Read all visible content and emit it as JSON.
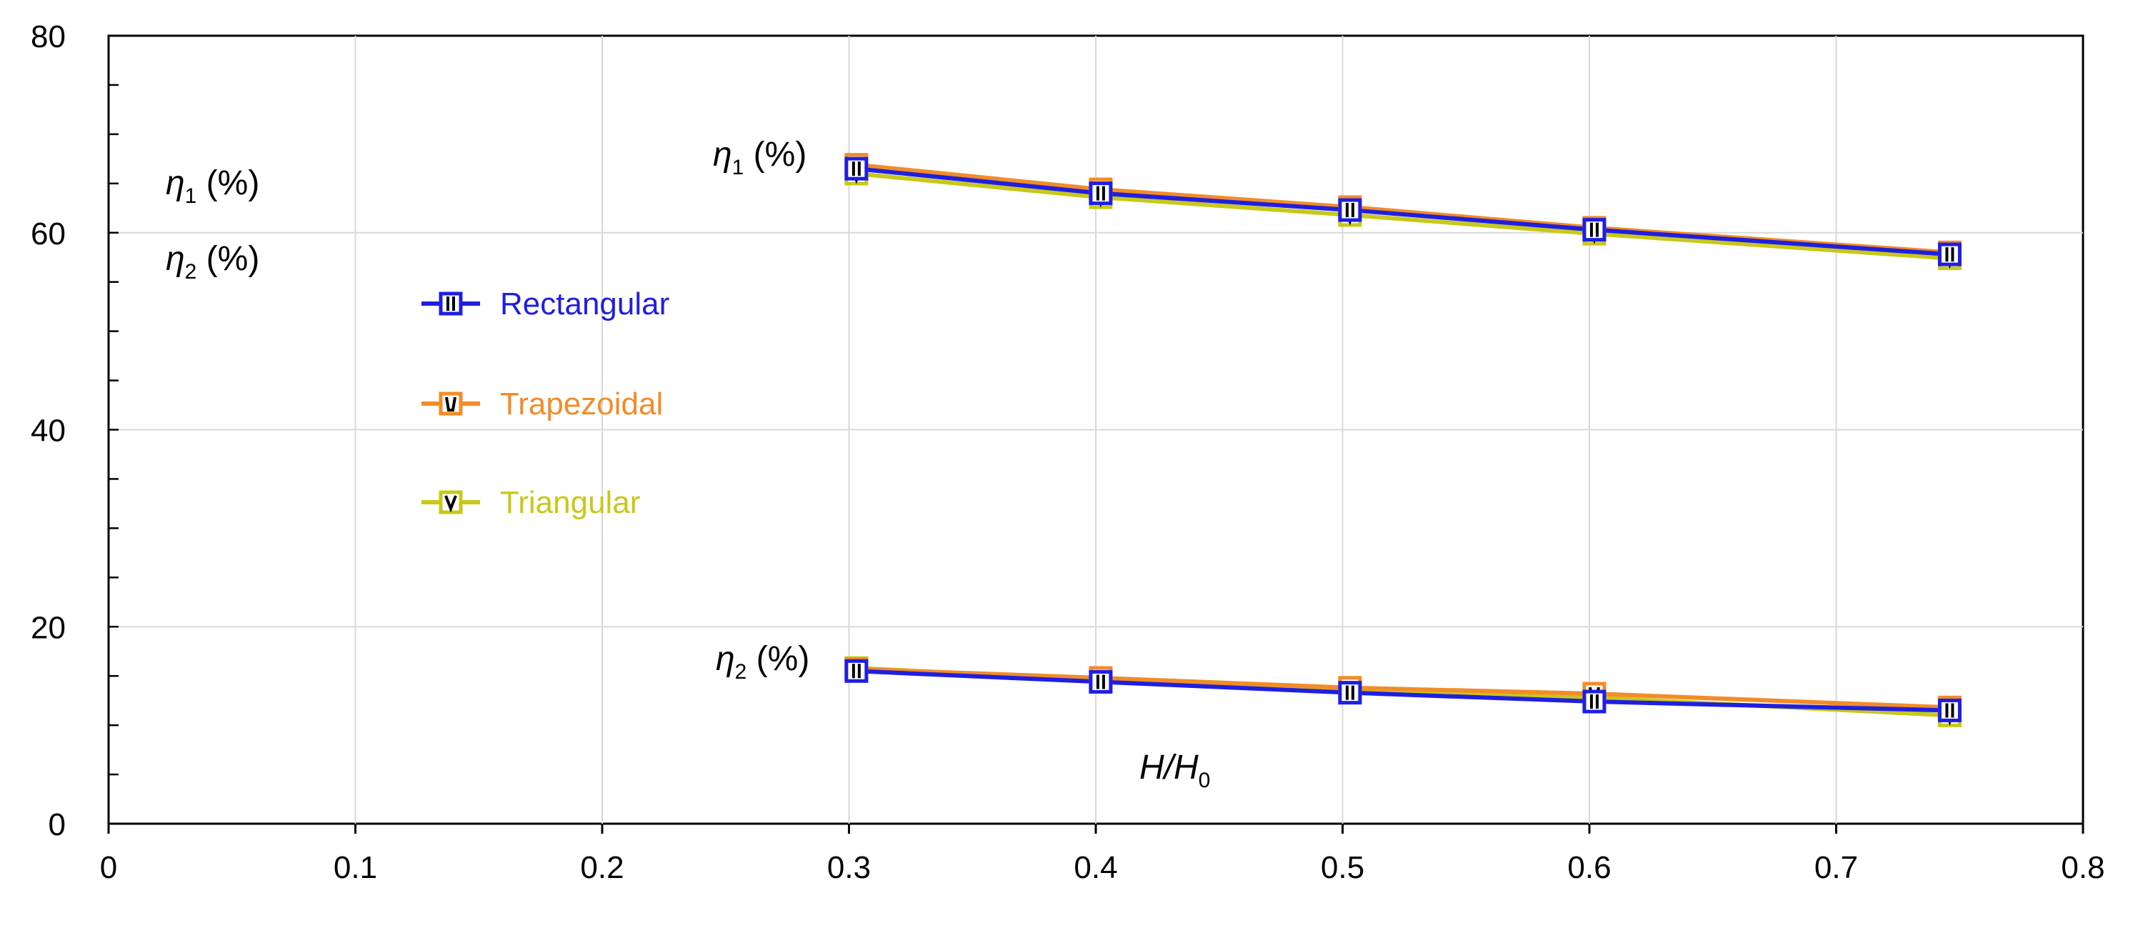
{
  "chart_data": {
    "type": "line",
    "xlabel": "H/H0",
    "xlim": [
      0,
      0.8
    ],
    "ylim": [
      0,
      80
    ],
    "x_ticks": [
      "0",
      "0.1",
      "0.2",
      "0.3",
      "0.4",
      "0.5",
      "0.6",
      "0.7",
      "0.8"
    ],
    "y_ticks": [
      "0",
      "20",
      "40",
      "60",
      "80"
    ],
    "grid": true,
    "legend_position": "left",
    "annotations": {
      "eta1_left": "η1 (%)",
      "eta2_left": "η2 (%)",
      "eta1_curve": "η1 (%)",
      "eta2_curve": "η2 (%)",
      "xlabel": "H/H0"
    },
    "series": [
      {
        "name": "Rectangular",
        "color": "#1f1fe0",
        "marker": "square-I",
        "x": [
          0.303,
          0.402,
          0.503,
          0.602,
          0.746
        ],
        "eta1": [
          66.5,
          64.0,
          62.3,
          60.3,
          57.8
        ],
        "eta2": [
          15.5,
          14.4,
          13.3,
          12.4,
          11.5
        ]
      },
      {
        "name": "Trapezoidal",
        "color": "#f28c28",
        "marker": "square-U",
        "x": [
          0.303,
          0.402,
          0.503,
          0.602,
          0.746
        ],
        "eta1": [
          66.9,
          64.4,
          62.6,
          60.5,
          58.0
        ],
        "eta2": [
          15.7,
          14.8,
          13.8,
          13.2,
          11.8
        ]
      },
      {
        "name": "Triangular",
        "color": "#c8c81a",
        "marker": "square-V",
        "x": [
          0.303,
          0.402,
          0.503,
          0.602,
          0.746
        ],
        "eta1": [
          66.0,
          63.6,
          61.8,
          59.9,
          57.4
        ],
        "eta2": [
          15.8,
          14.6,
          13.4,
          12.8,
          11.0
        ]
      }
    ]
  }
}
